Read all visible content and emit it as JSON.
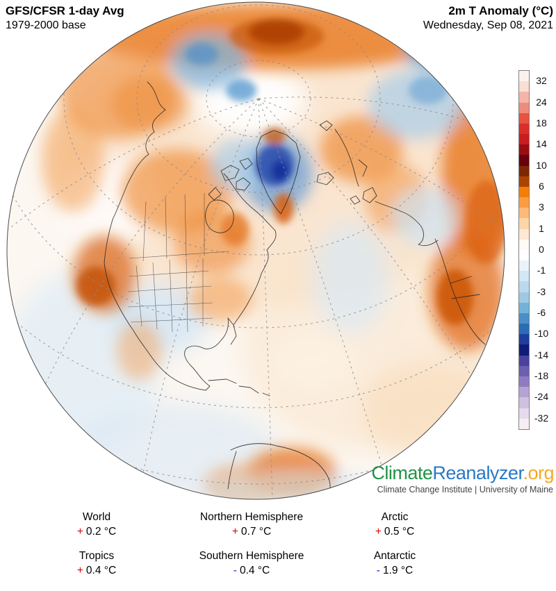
{
  "header": {
    "left_line1": "GFS/CFSR 1-day Avg",
    "left_line2": "1979-2000 base",
    "right_line1": "2m T Anomaly (°C)",
    "right_line2": "Wednesday, Sep 08, 2021"
  },
  "colorbar": {
    "tick_labels": [
      "32",
      "24",
      "18",
      "14",
      "10",
      "6",
      "3",
      "1",
      "0",
      "-1",
      "-3",
      "-6",
      "-10",
      "-14",
      "-18",
      "-24",
      "-32"
    ],
    "segments": [
      "#fdf1ec",
      "#f9ded4",
      "#f4b5a7",
      "#ef8b7a",
      "#e65341",
      "#da2e28",
      "#c81e20",
      "#9b0c13",
      "#67000d",
      "#7f2704",
      "#ad4303",
      "#f57e09",
      "#fb9c42",
      "#fcba79",
      "#fdd6a8",
      "#fee8d3",
      "#fffaf4",
      "#ffffff",
      "#e9f3fb",
      "#d3e6f5",
      "#bad9ee",
      "#9ccae4",
      "#74b2d8",
      "#4a90c5",
      "#2a6db4",
      "#1c3f9e",
      "#101c7a",
      "#4a429f",
      "#6c5fae",
      "#8f7cc0",
      "#b5a3d3",
      "#cfc0e1",
      "#e6dbee",
      "#f7edf2"
    ],
    "border_color": "#808080"
  },
  "logo": {
    "climate": "Climate",
    "reanalyzer": "Reanalyzer",
    "org": ".org",
    "climate_color": "#219347",
    "reanalyzer_color": "#2878c8",
    "org_color": "#f7a823",
    "subtitle": "Climate Change Institute | University of Maine",
    "subtitle_color": "#444444"
  },
  "stats": {
    "plus_color": "#e00000",
    "minus_color": "#1d1de0",
    "items": [
      {
        "label": "World",
        "sign": "+",
        "value": "0.2 °C"
      },
      {
        "label": "Northern Hemisphere",
        "sign": "+",
        "value": "0.7 °C"
      },
      {
        "label": "Arctic",
        "sign": "+",
        "value": "0.5 °C"
      },
      {
        "label": "Tropics",
        "sign": "+",
        "value": "0.4 °C"
      },
      {
        "label": "Southern Hemisphere",
        "sign": "-",
        "value": "0.4 °C"
      },
      {
        "label": "Antarctic",
        "sign": "-",
        "value": "1.9 °C"
      }
    ]
  }
}
